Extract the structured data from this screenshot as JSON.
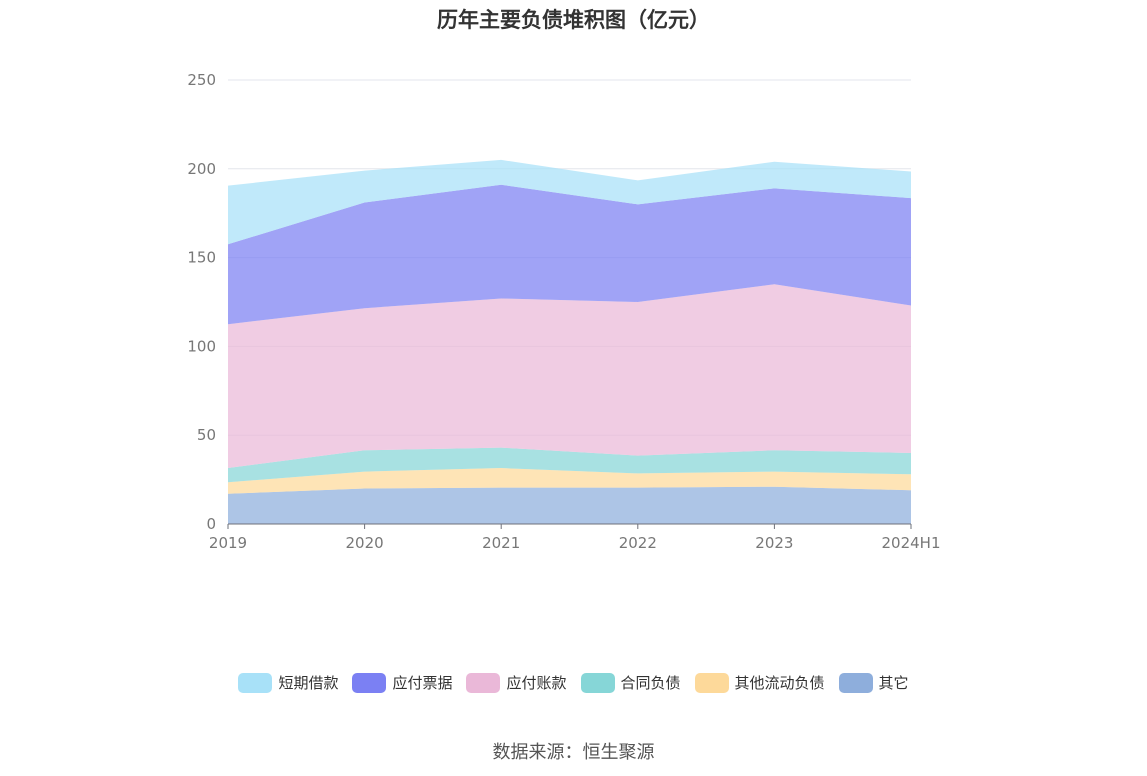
{
  "title": "历年主要负债堆积图（亿元）",
  "source": "数据来源：恒生聚源",
  "chart_data": {
    "type": "area",
    "stacked": true,
    "categories": [
      "2019",
      "2020",
      "2021",
      "2022",
      "2023",
      "2024H1"
    ],
    "ylim": [
      0,
      250
    ],
    "yticks": [
      0,
      50,
      100,
      150,
      200,
      250
    ],
    "grid": true,
    "legend_position": "bottom",
    "series": [
      {
        "name": "其它",
        "color": "#8eaedc",
        "values": [
          17,
          20,
          20.5,
          20.5,
          21,
          19
        ]
      },
      {
        "name": "其他流动负债",
        "color": "#fdd99a",
        "values": [
          6.5,
          9.5,
          11,
          8,
          8.5,
          9
        ]
      },
      {
        "name": "合同负债",
        "color": "#86d6d7",
        "values": [
          8,
          12,
          11.5,
          10,
          12,
          12
        ]
      },
      {
        "name": "应付账款",
        "color": "#eab8d8",
        "values": [
          81,
          80,
          84,
          86.5,
          93.5,
          83
        ]
      },
      {
        "name": "应付票据",
        "color": "#7b80f3",
        "values": [
          45,
          59.5,
          64,
          55,
          54,
          60.5
        ]
      },
      {
        "name": "短期借款",
        "color": "#a8e1f8",
        "values": [
          33,
          18,
          14,
          13.5,
          15,
          15
        ]
      }
    ]
  }
}
